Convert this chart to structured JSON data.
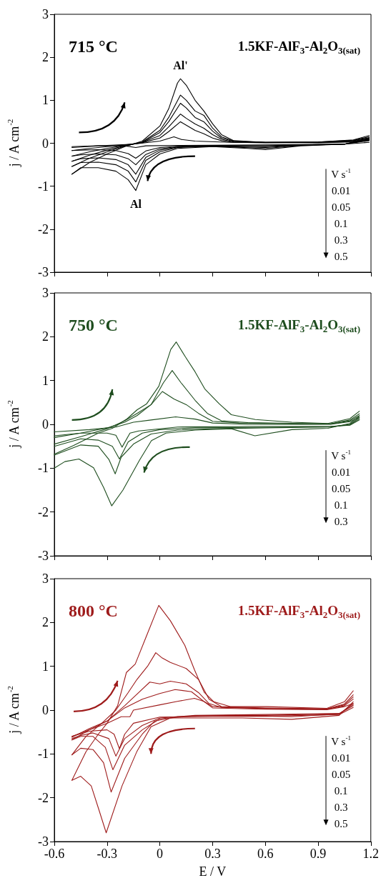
{
  "chart_data": [
    {
      "type": "line",
      "title": "715 °C",
      "subtitle": "1.5KF-AlF$_{3}$-Al$_{2}$O$_{3(sat)}$",
      "ylabel": "j / A cm$^{-2}$",
      "xlim": [
        -0.6,
        1.2
      ],
      "xticks": [
        -0.6,
        -0.3,
        0,
        0.3,
        0.6,
        0.9,
        1.2
      ],
      "ylim": [
        -3,
        3
      ],
      "yticks": [
        -3,
        -2,
        -1,
        0,
        1,
        2,
        3
      ],
      "tick_labels": "y",
      "marker": "none",
      "line_style": "solid",
      "annotations": [
        {
          "text": "Al'",
          "x": 0.117,
          "y": 1.5
        },
        {
          "text": "Al",
          "x": -0.137,
          "y": -1.1
        },
        "V s$^{-1}$",
        "0.01",
        "0.05",
        "0.1",
        "0.3",
        "0.5"
      ],
      "series": [
        {
          "color": "#000000",
          "x": [
            -0.5,
            -0.3,
            -0.15,
            0,
            0.08,
            0.12,
            0.2,
            0.4,
            0.9,
            1.1,
            1.19
          ],
          "values": [
            -0.08,
            -0.05,
            -0.02,
            0.05,
            0.15,
            0.09,
            0.05,
            0.02,
            0.01,
            0.03,
            0.07
          ]
        },
        {
          "color": "#000000",
          "x": [
            -0.5,
            -0.35,
            -0.2,
            -0.137,
            -0.08,
            0.1,
            0.6,
            1.05,
            1.19
          ],
          "values": [
            -0.1,
            -0.06,
            -0.06,
            -0.1,
            -0.06,
            -0.05,
            -0.04,
            -0.02,
            0.02
          ]
        },
        {
          "color": "#000000",
          "x": [
            -0.5,
            -0.4,
            -0.3,
            -0.2,
            -0.1,
            0,
            0.05,
            0.117,
            0.15,
            0.2,
            0.25,
            0.3,
            0.35,
            0.42,
            0.6,
            0.9,
            1.1,
            1.19
          ],
          "values": [
            -0.17,
            -0.12,
            -0.08,
            -0.04,
            0.01,
            0.12,
            0.27,
            0.5,
            0.42,
            0.3,
            0.22,
            0.12,
            0.06,
            0.02,
            0.01,
            0.02,
            0.04,
            0.09
          ]
        },
        {
          "color": "#000000",
          "x": [
            -0.5,
            -0.45,
            -0.35,
            -0.25,
            -0.18,
            -0.137,
            -0.08,
            0,
            0.1,
            0.3,
            0.6,
            0.8,
            1.05,
            1.19
          ],
          "values": [
            -0.17,
            -0.16,
            -0.15,
            -0.17,
            -0.24,
            -0.35,
            -0.18,
            -0.1,
            -0.07,
            -0.05,
            -0.06,
            -0.04,
            -0.02,
            0.06
          ]
        },
        {
          "color": "#000000",
          "x": [
            -0.5,
            -0.4,
            -0.3,
            -0.2,
            -0.1,
            0,
            0.05,
            0.117,
            0.15,
            0.2,
            0.25,
            0.3,
            0.35,
            0.42,
            0.6,
            0.9,
            1.1,
            1.19
          ],
          "values": [
            -0.3,
            -0.2,
            -0.12,
            -0.05,
            0.02,
            0.18,
            0.38,
            0.68,
            0.58,
            0.45,
            0.35,
            0.2,
            0.09,
            0.03,
            0.02,
            0.02,
            0.05,
            0.11
          ]
        },
        {
          "color": "#000000",
          "x": [
            -0.5,
            -0.45,
            -0.35,
            -0.25,
            -0.18,
            -0.137,
            -0.08,
            0,
            0.1,
            0.3,
            0.6,
            0.8,
            1.05,
            1.19
          ],
          "values": [
            -0.3,
            -0.27,
            -0.25,
            -0.27,
            -0.36,
            -0.5,
            -0.26,
            -0.13,
            -0.08,
            -0.06,
            -0.08,
            -0.04,
            -0.02,
            0.08
          ]
        },
        {
          "color": "#000000",
          "x": [
            -0.5,
            -0.4,
            -0.3,
            -0.2,
            -0.1,
            0,
            0.05,
            0.117,
            0.15,
            0.2,
            0.25,
            0.3,
            0.35,
            0.42,
            0.6,
            0.9,
            1.1,
            1.19
          ],
          "values": [
            -0.42,
            -0.28,
            -0.16,
            -0.06,
            0.02,
            0.25,
            0.5,
            0.93,
            0.82,
            0.6,
            0.5,
            0.28,
            0.12,
            0.04,
            0.02,
            0.02,
            0.06,
            0.13
          ]
        },
        {
          "color": "#000000",
          "x": [
            -0.5,
            -0.45,
            -0.35,
            -0.25,
            -0.18,
            -0.137,
            -0.08,
            0,
            0.1,
            0.3,
            0.6,
            0.8,
            1.05,
            1.19
          ],
          "values": [
            -0.42,
            -0.36,
            -0.34,
            -0.38,
            -0.5,
            -0.72,
            -0.33,
            -0.16,
            -0.09,
            -0.07,
            -0.1,
            -0.05,
            -0.02,
            0.09
          ]
        },
        {
          "color": "#000000",
          "x": [
            -0.5,
            -0.4,
            -0.3,
            -0.2,
            -0.1,
            0,
            0.05,
            0.117,
            0.15,
            0.2,
            0.25,
            0.3,
            0.35,
            0.42,
            0.6,
            0.9,
            1.1,
            1.19
          ],
          "values": [
            -0.54,
            -0.35,
            -0.2,
            -0.07,
            0.03,
            0.3,
            0.6,
            1.12,
            1.0,
            0.75,
            0.65,
            0.35,
            0.15,
            0.05,
            0.02,
            0.03,
            0.07,
            0.15
          ]
        },
        {
          "color": "#000000",
          "x": [
            -0.5,
            -0.45,
            -0.35,
            -0.25,
            -0.18,
            -0.137,
            -0.08,
            0,
            0.1,
            0.3,
            0.6,
            0.8,
            1.05,
            1.19
          ],
          "values": [
            -0.54,
            -0.45,
            -0.44,
            -0.5,
            -0.65,
            -0.9,
            -0.4,
            -0.2,
            -0.1,
            -0.07,
            -0.12,
            -0.05,
            -0.02,
            0.1
          ]
        },
        {
          "color": "#000000",
          "x": [
            -0.5,
            -0.4,
            -0.3,
            -0.2,
            -0.1,
            0,
            0.05,
            0.1,
            0.117,
            0.15,
            0.2,
            0.25,
            0.3,
            0.35,
            0.42,
            0.6,
            0.9,
            1.1,
            1.19
          ],
          "values": [
            -0.72,
            -0.45,
            -0.25,
            -0.08,
            0.05,
            0.4,
            0.8,
            1.4,
            1.5,
            1.35,
            1.0,
            0.75,
            0.45,
            0.2,
            0.06,
            0.02,
            0.03,
            0.08,
            0.18
          ]
        },
        {
          "color": "#000000",
          "x": [
            -0.5,
            -0.45,
            -0.35,
            -0.25,
            -0.18,
            -0.137,
            -0.08,
            0,
            0.1,
            0.3,
            0.5,
            0.6,
            0.8,
            1.05,
            1.19
          ],
          "values": [
            -0.72,
            -0.57,
            -0.57,
            -0.65,
            -0.85,
            -1.1,
            -0.5,
            -0.25,
            -0.12,
            -0.08,
            -0.12,
            -0.15,
            -0.06,
            -0.02,
            0.12
          ]
        }
      ]
    },
    {
      "type": "line",
      "title": "750 °C",
      "subtitle": "1.5KF-AlF$_{3}$-Al$_{2}$O$_{3(sat)}$",
      "ylabel": "j / A cm$^{-2}$",
      "xlim": [
        -0.6,
        1.2
      ],
      "xticks": [
        -0.6,
        -0.3,
        0,
        0.3,
        0.6,
        0.9,
        1.2
      ],
      "ylim": [
        -3,
        3
      ],
      "yticks": [
        -3,
        -2,
        -1,
        0,
        1,
        2,
        3
      ],
      "tick_labels": "y",
      "marker": "none",
      "line_style": "solid",
      "annotations": [
        "V s$^{-1}$",
        "0.01",
        "0.05",
        "0.1",
        "0.3"
      ],
      "series": [
        {
          "color": "#1e4d1e",
          "x": [
            -0.6,
            -0.4,
            -0.25,
            -0.15,
            -0.05,
            0.09,
            0.2,
            0.3,
            0.5,
            0.97,
            1.08,
            1.134
          ],
          "values": [
            -0.17,
            -0.12,
            -0.06,
            0.05,
            0.1,
            0.17,
            0.12,
            0.03,
            0,
            0,
            0.06,
            0.16
          ]
        },
        {
          "color": "#1e4d1e",
          "x": [
            -0.6,
            -0.45,
            -0.3,
            -0.25,
            -0.215,
            -0.17,
            -0.12,
            0.1,
            0.5,
            0.97,
            1.08,
            1.134
          ],
          "values": [
            -0.26,
            -0.2,
            -0.2,
            -0.25,
            -0.52,
            -0.2,
            -0.15,
            -0.06,
            -0.05,
            -0.05,
            -0.02,
            0.1
          ]
        },
        {
          "color": "#1e4d1e",
          "x": [
            -0.6,
            -0.45,
            -0.3,
            -0.2,
            -0.13,
            -0.05,
            0.014,
            0.08,
            0.15,
            0.22,
            0.3,
            0.45,
            0.8,
            0.97,
            1.08,
            1.134
          ],
          "values": [
            -0.3,
            -0.2,
            -0.08,
            0.05,
            0.2,
            0.45,
            0.75,
            0.58,
            0.45,
            0.25,
            0.07,
            0.03,
            0.01,
            0.01,
            0.08,
            0.2
          ]
        },
        {
          "color": "#1e4d1e",
          "x": [
            -0.6,
            -0.45,
            -0.35,
            -0.27,
            -0.23,
            -0.18,
            -0.1,
            0,
            0.2,
            0.5,
            0.97,
            1.08,
            1.134
          ],
          "values": [
            -0.5,
            -0.33,
            -0.36,
            -0.5,
            -0.79,
            -0.4,
            -0.2,
            -0.12,
            -0.08,
            -0.07,
            -0.05,
            -0.01,
            0.12
          ]
        },
        {
          "color": "#1e4d1e",
          "x": [
            -0.6,
            -0.45,
            -0.3,
            -0.2,
            -0.13,
            -0.05,
            0.02,
            0.07,
            0.12,
            0.2,
            0.27,
            0.35,
            0.5,
            0.8,
            0.97,
            1.08,
            1.134
          ],
          "values": [
            -0.45,
            -0.28,
            -0.1,
            0.08,
            0.25,
            0.45,
            0.95,
            1.23,
            0.95,
            0.55,
            0.25,
            0.08,
            0.04,
            0.02,
            0.01,
            0.1,
            0.24
          ]
        },
        {
          "color": "#1e4d1e",
          "x": [
            -0.6,
            -0.45,
            -0.35,
            -0.29,
            -0.254,
            -0.22,
            -0.15,
            -0.05,
            0.1,
            0.3,
            0.6,
            0.97,
            1.08,
            1.134
          ],
          "values": [
            -0.7,
            -0.47,
            -0.5,
            -0.8,
            -1.13,
            -0.75,
            -0.45,
            -0.22,
            -0.13,
            -0.1,
            -0.08,
            -0.06,
            0,
            0.15
          ]
        },
        {
          "color": "#1e4d1e",
          "x": [
            -0.6,
            -0.49,
            -0.35,
            -0.27,
            -0.185,
            -0.13,
            -0.075,
            -0.006,
            0.062,
            0.093,
            0.145,
            0.2,
            0.255,
            0.337,
            0.406,
            0.543,
            0.75,
            0.955,
            1.08,
            1.134
          ],
          "values": [
            -0.68,
            -0.48,
            -0.2,
            -0.09,
            0.13,
            0.33,
            0.47,
            0.87,
            1.71,
            1.88,
            1.54,
            1.2,
            0.81,
            0.47,
            0.22,
            0.11,
            0.05,
            0.02,
            0.13,
            0.3
          ]
        },
        {
          "color": "#1e4d1e",
          "x": [
            -0.6,
            -0.54,
            -0.46,
            -0.377,
            -0.32,
            -0.274,
            -0.21,
            -0.116,
            -0.048,
            0.035,
            0.2,
            0.406,
            0.54,
            0.75,
            0.955,
            1.08,
            1.134
          ],
          "values": [
            -1.0,
            -0.85,
            -0.79,
            -0.99,
            -1.44,
            -1.86,
            -1.5,
            -0.82,
            -0.37,
            -0.2,
            -0.13,
            -0.1,
            -0.26,
            -0.12,
            -0.09,
            0.02,
            0.19
          ]
        }
      ]
    },
    {
      "type": "line",
      "title": "800 °C",
      "subtitle": "1.5KF-AlF$_{3}$-Al$_{2}$O$_{3(sat)}$",
      "xlabel": "E / V",
      "ylabel": "j / A cm$^{-2}$",
      "xlim": [
        -0.6,
        1.2
      ],
      "xticks": [
        -0.6,
        -0.3,
        0,
        0.3,
        0.6,
        0.9,
        1.2
      ],
      "ylim": [
        -3,
        3
      ],
      "yticks": [
        -3,
        -2,
        -1,
        0,
        1,
        2,
        3
      ],
      "marker": "none",
      "line_style": "solid",
      "annotations": [
        "V s$^{-1}$",
        "0.01",
        "0.05",
        "0.1",
        "0.3",
        "0.5"
      ],
      "series": [
        {
          "color": "#9e1b1b",
          "x": [
            -0.5,
            -0.4,
            -0.3,
            -0.22,
            -0.17,
            -0.15,
            0,
            0.1,
            0.197,
            0.25,
            0.3,
            0.6,
            0.95,
            1.05,
            1.1
          ],
          "values": [
            -0.6,
            -0.45,
            -0.3,
            -0.15,
            -0.15,
            0,
            0.12,
            0.2,
            0.27,
            0.2,
            0.05,
            0.02,
            0.01,
            0.08,
            0.15
          ]
        },
        {
          "color": "#9e1b1b",
          "x": [
            -0.5,
            -0.4,
            -0.3,
            -0.26,
            -0.23,
            -0.2,
            -0.15,
            0,
            0.3,
            0.6,
            1.02,
            1.1
          ],
          "values": [
            -0.6,
            -0.48,
            -0.45,
            -0.55,
            -0.88,
            -0.55,
            -0.3,
            -0.16,
            -0.14,
            -0.14,
            -0.1,
            0.06
          ]
        },
        {
          "color": "#9e1b1b",
          "x": [
            -0.5,
            -0.4,
            -0.3,
            -0.2,
            -0.1,
            0,
            0.087,
            0.18,
            0.25,
            0.3,
            0.6,
            0.95,
            1.05,
            1.1
          ],
          "values": [
            -0.62,
            -0.42,
            -0.25,
            0.05,
            0.25,
            0.38,
            0.47,
            0.42,
            0.2,
            0.08,
            0.03,
            0.02,
            0.1,
            0.25
          ]
        },
        {
          "color": "#9e1b1b",
          "x": [
            -0.5,
            -0.45,
            -0.38,
            -0.29,
            -0.25,
            -0.2,
            -0.1,
            0,
            0.2,
            0.6,
            1.02,
            1.1
          ],
          "values": [
            -0.65,
            -0.58,
            -0.52,
            -0.65,
            -1.05,
            -0.65,
            -0.35,
            -0.18,
            -0.12,
            -0.1,
            -0.08,
            0.1
          ]
        },
        {
          "color": "#9e1b1b",
          "x": [
            -0.5,
            -0.4,
            -0.3,
            -0.2,
            -0.12,
            -0.057,
            0,
            0.06,
            0.15,
            0.22,
            0.28,
            0.35,
            0.6,
            0.95,
            1.05,
            1.1
          ],
          "values": [
            -0.68,
            -0.45,
            -0.25,
            0.1,
            0.4,
            0.64,
            0.6,
            0.66,
            0.6,
            0.4,
            0.15,
            0.06,
            0.04,
            0.02,
            0.12,
            0.3
          ]
        },
        {
          "color": "#9e1b1b",
          "x": [
            -0.5,
            -0.45,
            -0.38,
            -0.31,
            -0.267,
            -0.2,
            -0.1,
            0,
            0.2,
            0.6,
            1.02,
            1.1
          ],
          "values": [
            -0.68,
            -0.6,
            -0.6,
            -0.85,
            -1.36,
            -0.8,
            -0.45,
            -0.2,
            -0.13,
            -0.12,
            -0.08,
            0.12
          ]
        },
        {
          "color": "#9e1b1b",
          "x": [
            -0.5,
            -0.42,
            -0.33,
            -0.25,
            -0.18,
            -0.13,
            -0.07,
            -0.023,
            0.01,
            0.06,
            0.15,
            0.22,
            0.28,
            0.35,
            0.6,
            0.95,
            1.05,
            1.1
          ],
          "values": [
            -1.02,
            -0.6,
            -0.3,
            0,
            0.4,
            0.7,
            1.0,
            1.31,
            1.2,
            1.09,
            0.95,
            0.7,
            0.25,
            0.08,
            0.05,
            0.03,
            0.14,
            0.35
          ]
        },
        {
          "color": "#9e1b1b",
          "x": [
            -0.5,
            -0.45,
            -0.38,
            -0.32,
            -0.277,
            -0.2,
            -0.1,
            -0.03,
            0.1,
            0.4,
            0.75,
            1.02,
            1.1
          ],
          "values": [
            -1.02,
            -0.87,
            -0.9,
            -1.2,
            -1.87,
            -1.1,
            -0.55,
            -0.25,
            -0.15,
            -0.12,
            -0.15,
            -0.09,
            0.15
          ]
        },
        {
          "color": "#9e1b1b",
          "x": [
            -0.5,
            -0.42,
            -0.35,
            -0.3,
            -0.24,
            -0.19,
            -0.14,
            -0.08,
            -0.006,
            0.06,
            0.142,
            0.197,
            0.252,
            0.307,
            0.4,
            0.61,
            0.95,
            1.05,
            1.1
          ],
          "values": [
            -1.6,
            -0.95,
            -0.55,
            -0.3,
            0.1,
            0.86,
            1.05,
            1.65,
            2.39,
            2.04,
            1.48,
            0.92,
            0.41,
            0.19,
            0.08,
            0.08,
            0.04,
            0.19,
            0.44
          ]
        },
        {
          "color": "#9e1b1b",
          "x": [
            -0.5,
            -0.45,
            -0.39,
            -0.35,
            -0.305,
            -0.215,
            -0.13,
            -0.05,
            0.06,
            0.47,
            0.75,
            1.02,
            1.1
          ],
          "values": [
            -1.6,
            -1.51,
            -1.73,
            -2.23,
            -2.8,
            -1.73,
            -0.94,
            -0.38,
            -0.18,
            -0.18,
            -0.21,
            -0.12,
            0.19
          ]
        }
      ]
    }
  ]
}
